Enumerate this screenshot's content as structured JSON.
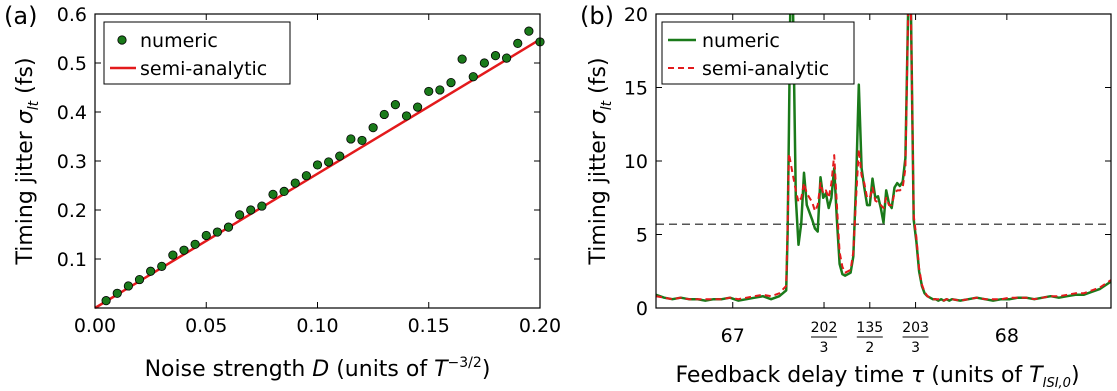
{
  "chart_data": [
    {
      "type": "scatter",
      "panel_label": "(a)",
      "xlabel": "Noise strength D (units of T⁻³ᐟ²)",
      "xlabel_parts": {
        "pre": "Noise strength ",
        "var": "D",
        "mid": " (units of ",
        "unit": "T",
        "sup": "−3/2",
        "post": ")"
      },
      "ylabel_parts": {
        "pre": "Timing jitter ",
        "var": "σ",
        "sub": "lt",
        "post": " (fs)"
      },
      "xlim": [
        0.0,
        0.2
      ],
      "ylim": [
        0.0,
        0.6
      ],
      "xticks": [
        0.0,
        0.05,
        0.1,
        0.15,
        0.2
      ],
      "xtick_labels": [
        "0.00",
        "0.05",
        "0.10",
        "0.15",
        "0.20"
      ],
      "yticks": [
        0.1,
        0.2,
        0.3,
        0.4,
        0.5,
        0.6
      ],
      "ytick_labels": [
        "0.1",
        "0.2",
        "0.3",
        "0.4",
        "0.5",
        "0.6"
      ],
      "legend": {
        "position": "upper-left",
        "entries": [
          "numeric",
          "semi-analytic"
        ]
      },
      "series": [
        {
          "name": "numeric",
          "marker": "circle",
          "color": "#1a7a1a",
          "x": [
            0.005,
            0.01,
            0.015,
            0.02,
            0.025,
            0.03,
            0.035,
            0.04,
            0.045,
            0.05,
            0.055,
            0.06,
            0.065,
            0.07,
            0.075,
            0.08,
            0.085,
            0.09,
            0.095,
            0.1,
            0.105,
            0.11,
            0.115,
            0.12,
            0.125,
            0.13,
            0.135,
            0.14,
            0.145,
            0.15,
            0.155,
            0.16,
            0.165,
            0.17,
            0.175,
            0.18,
            0.185,
            0.19,
            0.195,
            0.2
          ],
          "y": [
            0.015,
            0.03,
            0.045,
            0.058,
            0.075,
            0.085,
            0.108,
            0.118,
            0.13,
            0.148,
            0.155,
            0.165,
            0.19,
            0.2,
            0.208,
            0.232,
            0.238,
            0.255,
            0.27,
            0.292,
            0.298,
            0.31,
            0.345,
            0.342,
            0.368,
            0.395,
            0.415,
            0.392,
            0.41,
            0.442,
            0.445,
            0.46,
            0.508,
            0.472,
            0.5,
            0.515,
            0.51,
            0.54,
            0.565,
            0.543
          ]
        },
        {
          "name": "semi-analytic",
          "type": "line",
          "color": "#e31a1c",
          "x": [
            0.0,
            0.2
          ],
          "y": [
            0.0,
            0.548
          ]
        }
      ]
    },
    {
      "type": "line",
      "panel_label": "(b)",
      "xlabel_parts": {
        "pre": "Feedback delay time ",
        "var": "τ",
        "mid": " (units of ",
        "unit": "T",
        "sub": "ISI,0",
        "post": ")"
      },
      "ylabel_parts": {
        "pre": "Timing jitter ",
        "var": "σ",
        "sub": "lt",
        "post": " (fs)"
      },
      "xlim": [
        66.72,
        68.38
      ],
      "ylim": [
        0,
        20
      ],
      "xticks": [
        67,
        68
      ],
      "xtick_labels": [
        "67",
        "68"
      ],
      "frac_ticks": [
        {
          "x": 67.333,
          "num": "202",
          "den": "3"
        },
        {
          "x": 67.5,
          "num": "135",
          "den": "2"
        },
        {
          "x": 67.667,
          "num": "203",
          "den": "3"
        }
      ],
      "yticks": [
        0,
        5,
        10,
        15,
        20
      ],
      "ytick_labels": [
        "0",
        "5",
        "10",
        "15",
        "20"
      ],
      "hline": {
        "y": 5.7,
        "style": "dashed",
        "color": "#555555"
      },
      "legend": {
        "position": "upper-left",
        "entries": [
          "numeric",
          "semi-analytic"
        ]
      },
      "series": [
        {
          "name": "numeric",
          "color": "#1a7a1a",
          "style": "solid",
          "x": [
            66.72,
            66.75,
            66.78,
            66.81,
            66.84,
            66.87,
            66.9,
            66.93,
            66.96,
            66.99,
            67.02,
            67.05,
            67.08,
            67.11,
            67.14,
            67.17,
            67.195,
            67.2,
            67.205,
            67.21,
            67.22,
            67.23,
            67.24,
            67.25,
            67.26,
            67.27,
            67.28,
            67.29,
            67.3,
            67.31,
            67.32,
            67.33,
            67.34,
            67.35,
            67.36,
            67.37,
            67.38,
            67.39,
            67.4,
            67.41,
            67.42,
            67.43,
            67.44,
            67.45,
            67.46,
            67.47,
            67.48,
            67.49,
            67.5,
            67.51,
            67.52,
            67.53,
            67.54,
            67.55,
            67.56,
            67.57,
            67.58,
            67.59,
            67.6,
            67.61,
            67.62,
            67.63,
            67.64,
            67.65,
            67.66,
            67.67,
            67.68,
            67.69,
            67.7,
            67.71,
            67.72,
            67.73,
            67.74,
            67.75,
            67.76,
            67.77,
            67.78,
            67.79,
            67.8,
            67.83,
            67.86,
            67.89,
            67.92,
            67.95,
            67.98,
            68.01,
            68.04,
            68.07,
            68.1,
            68.13,
            68.16,
            68.19,
            68.22,
            68.25,
            68.28,
            68.31,
            68.34,
            68.38
          ],
          "y": [
            0.9,
            0.7,
            0.6,
            0.7,
            0.6,
            0.6,
            0.5,
            0.6,
            0.6,
            0.7,
            0.5,
            0.6,
            0.7,
            0.8,
            0.6,
            0.8,
            1.2,
            5.0,
            12.0,
            20.5,
            20.5,
            7.5,
            4.3,
            5.8,
            9.2,
            7.0,
            6.5,
            6.0,
            5.4,
            5.2,
            8.9,
            7.5,
            7.8,
            6.8,
            7.5,
            9.5,
            6.0,
            3.0,
            2.3,
            2.2,
            2.3,
            2.4,
            3.5,
            8.5,
            15.2,
            9.5,
            8.2,
            7.0,
            7.0,
            8.8,
            7.5,
            7.6,
            6.8,
            5.8,
            8.0,
            7.1,
            6.8,
            8.2,
            8.5,
            8.3,
            8.6,
            10.2,
            20.5,
            20.5,
            6.0,
            4.5,
            2.5,
            1.5,
            1.0,
            0.8,
            0.7,
            0.6,
            0.6,
            0.5,
            0.6,
            0.5,
            0.6,
            0.5,
            0.6,
            0.5,
            0.6,
            0.7,
            0.6,
            0.5,
            0.6,
            0.6,
            0.7,
            0.7,
            0.6,
            0.7,
            0.8,
            0.7,
            0.8,
            0.9,
            0.9,
            1.1,
            1.3,
            1.8
          ]
        },
        {
          "name": "semi-analytic",
          "color": "#e31a1c",
          "style": "dashed",
          "x": [
            66.72,
            66.75,
            66.78,
            66.81,
            66.84,
            66.87,
            66.9,
            66.93,
            66.96,
            66.99,
            67.02,
            67.05,
            67.08,
            67.11,
            67.14,
            67.17,
            67.195,
            67.2,
            67.205,
            67.21,
            67.22,
            67.23,
            67.24,
            67.25,
            67.26,
            67.27,
            67.28,
            67.29,
            67.3,
            67.31,
            67.32,
            67.33,
            67.34,
            67.35,
            67.36,
            67.37,
            67.38,
            67.39,
            67.4,
            67.41,
            67.42,
            67.43,
            67.44,
            67.45,
            67.46,
            67.47,
            67.48,
            67.49,
            67.5,
            67.51,
            67.52,
            67.53,
            67.54,
            67.55,
            67.56,
            67.57,
            67.58,
            67.59,
            67.6,
            67.61,
            67.62,
            67.63,
            67.64,
            67.65,
            67.66,
            67.67,
            67.68,
            67.69,
            67.7,
            67.71,
            67.72,
            67.73,
            67.74,
            67.75,
            67.76,
            67.77,
            67.78,
            67.79,
            67.8,
            67.83,
            67.86,
            67.89,
            67.92,
            67.95,
            67.98,
            68.01,
            68.04,
            68.07,
            68.1,
            68.13,
            68.16,
            68.19,
            68.22,
            68.25,
            68.28,
            68.31,
            68.34,
            68.38
          ],
          "y": [
            0.8,
            0.7,
            0.6,
            0.7,
            0.6,
            0.6,
            0.6,
            0.6,
            0.6,
            0.7,
            0.6,
            0.7,
            0.8,
            0.9,
            0.8,
            1.0,
            1.5,
            5.5,
            10.5,
            10.0,
            9.0,
            8.0,
            7.2,
            7.5,
            8.5,
            7.8,
            7.5,
            7.2,
            6.6,
            7.0,
            8.5,
            7.8,
            8.0,
            7.5,
            8.5,
            10.4,
            7.0,
            3.8,
            2.8,
            2.4,
            2.5,
            2.6,
            3.8,
            7.5,
            10.8,
            9.0,
            8.5,
            7.5,
            7.5,
            8.2,
            7.3,
            7.2,
            7.0,
            6.8,
            7.5,
            7.0,
            7.0,
            7.8,
            8.0,
            8.0,
            8.2,
            9.5,
            20.5,
            20.5,
            6.3,
            4.8,
            2.7,
            1.6,
            1.1,
            0.8,
            0.7,
            0.6,
            0.6,
            0.6,
            0.6,
            0.5,
            0.6,
            0.6,
            0.6,
            0.5,
            0.6,
            0.7,
            0.6,
            0.6,
            0.6,
            0.7,
            0.7,
            0.7,
            0.6,
            0.7,
            0.8,
            0.8,
            0.9,
            1.0,
            1.0,
            1.2,
            1.4,
            1.9
          ]
        }
      ]
    }
  ]
}
